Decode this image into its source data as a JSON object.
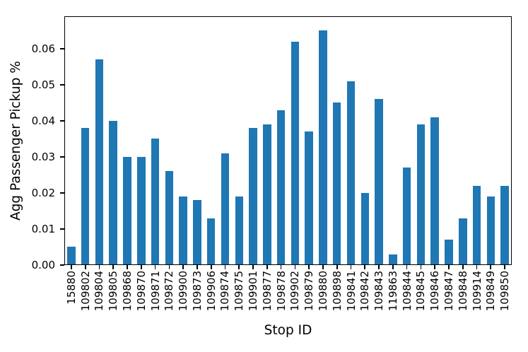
{
  "chart_data": {
    "type": "bar",
    "title": "",
    "xlabel": "Stop ID",
    "ylabel": "Agg Passenger Pickup %",
    "categories": [
      "15880",
      "109802",
      "109804",
      "109805",
      "109868",
      "109870",
      "109871",
      "109872",
      "109900",
      "109873",
      "109906",
      "109874",
      "109875",
      "109901",
      "109877",
      "109878",
      "109902",
      "109879",
      "109880",
      "109898",
      "109841",
      "109842",
      "109843",
      "119863",
      "109844",
      "109845",
      "109846",
      "109847",
      "109848",
      "109914",
      "109849",
      "109850"
    ],
    "values": [
      0.005,
      0.038,
      0.057,
      0.04,
      0.03,
      0.03,
      0.035,
      0.026,
      0.019,
      0.018,
      0.013,
      0.031,
      0.019,
      0.038,
      0.039,
      0.043,
      0.062,
      0.037,
      0.065,
      0.045,
      0.051,
      0.02,
      0.046,
      0.003,
      0.027,
      0.039,
      0.041,
      0.007,
      0.013,
      0.022,
      0.019,
      0.022
    ],
    "y_tick_labels": [
      "0.00",
      "0.01",
      "0.02",
      "0.03",
      "0.04",
      "0.05",
      "0.06"
    ],
    "y_tick_values": [
      0.0,
      0.01,
      0.02,
      0.03,
      0.04,
      0.05,
      0.06
    ],
    "ylim": [
      0,
      0.069
    ],
    "x_tick_rotation": 90,
    "grid": false,
    "legend": "none",
    "bar_color": "#1f77b4",
    "axis_color": "#000000",
    "background_color": "#ffffff"
  }
}
